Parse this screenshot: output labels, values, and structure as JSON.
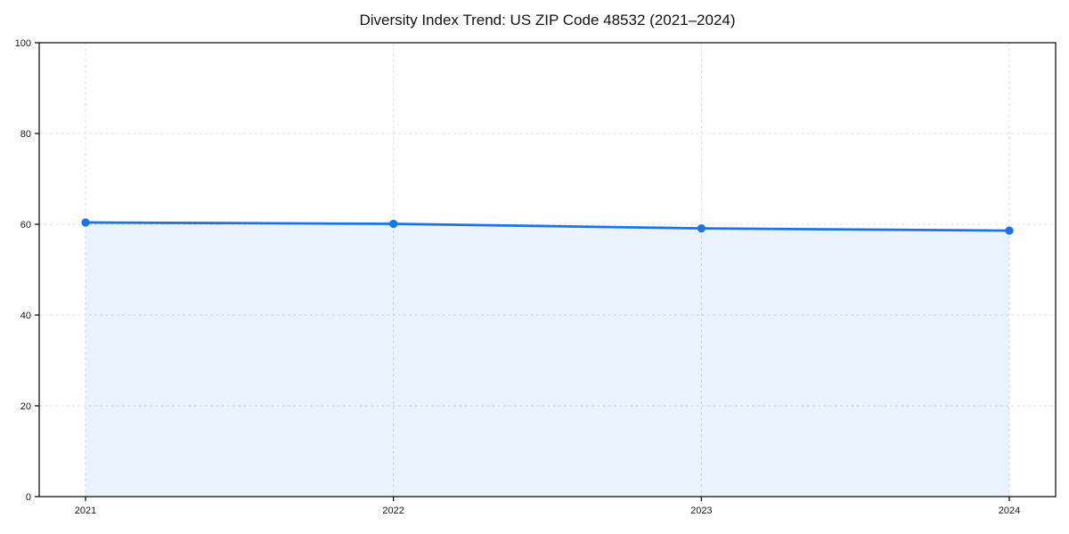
{
  "chart_data": {
    "type": "area",
    "title": "Diversity Index Trend: US ZIP Code 48532 (2021–2024)",
    "categories": [
      "2021",
      "2022",
      "2023",
      "2024"
    ],
    "series": [
      {
        "name": "Diversity Index",
        "values": [
          60.4,
          60.1,
          59.1,
          58.6
        ]
      }
    ],
    "xlabel": "",
    "ylabel": "",
    "ylim": [
      0,
      100
    ],
    "yticks": [
      0,
      20,
      40,
      60,
      80,
      100
    ],
    "grid": true,
    "grid_style": "dashed",
    "legend": false,
    "colors": {
      "line": "#1a73e8",
      "marker": "#1a73e8",
      "fill": "#1a73e8",
      "fill_opacity": 0.09,
      "gridline": "#dcdcdc",
      "axis": "#000000",
      "tick_label": "#1a1a1a",
      "title": "#111111",
      "background": "#ffffff"
    }
  }
}
